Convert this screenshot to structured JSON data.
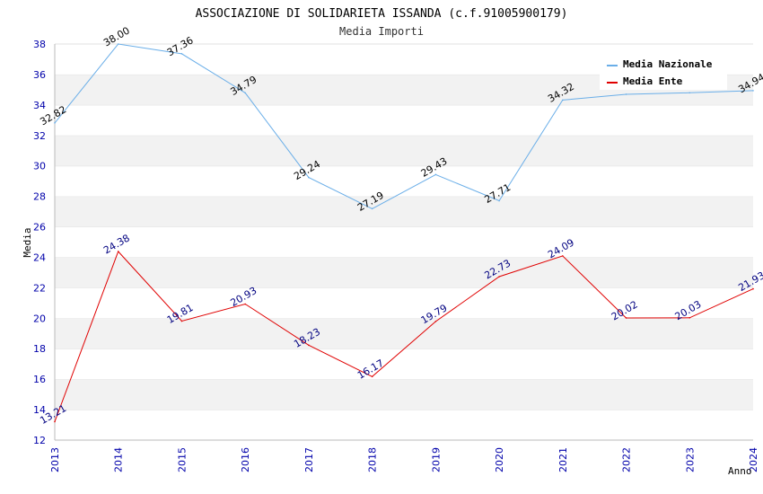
{
  "chart_data": {
    "type": "line",
    "title": "ASSOCIAZIONE DI SOLIDARIETA ISSANDA (c.f.91005900179)",
    "subtitle": "Media Importi",
    "xlabel": "Anno",
    "ylabel": "Media",
    "x": [
      "2013",
      "2014",
      "2015",
      "2016",
      "2017",
      "2018",
      "2019",
      "2020",
      "2021",
      "2022",
      "2023",
      "2024"
    ],
    "ylim": [
      12,
      38
    ],
    "yticks": [
      12,
      14,
      16,
      18,
      20,
      22,
      24,
      26,
      28,
      30,
      32,
      34,
      36,
      38
    ],
    "grid": "horizontal bands",
    "legend_position": "top-right",
    "series": [
      {
        "name": "Media Nazionale",
        "color": "#6aaee8",
        "values": [
          32.82,
          38.0,
          37.36,
          34.79,
          29.24,
          27.19,
          29.43,
          27.71,
          34.32,
          34.7,
          34.8,
          34.94
        ],
        "labels": [
          "32.82",
          "38.00",
          "37.36",
          "34.79",
          "29.24",
          "27.19",
          "29.43",
          "27.71",
          "34.32",
          "",
          "",
          "34.94"
        ]
      },
      {
        "name": "Media Ente",
        "color": "#e00000",
        "values": [
          13.21,
          24.38,
          19.81,
          20.93,
          18.23,
          16.17,
          19.79,
          22.73,
          24.09,
          20.02,
          20.03,
          21.93
        ],
        "labels": [
          "13.21",
          "24.38",
          "19.81",
          "20.93",
          "18.23",
          "16.17",
          "19.79",
          "22.73",
          "24.09",
          "20.02",
          "20.03",
          "21.93"
        ]
      }
    ]
  }
}
